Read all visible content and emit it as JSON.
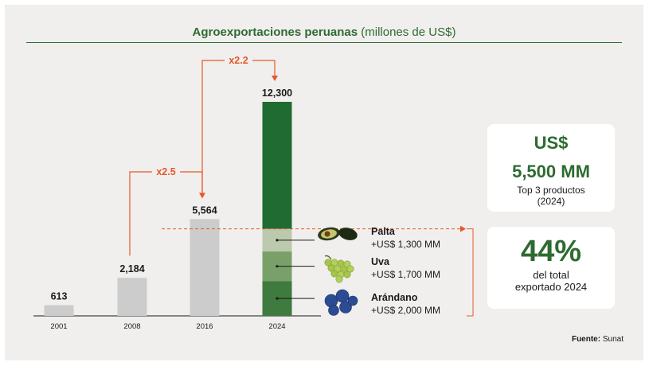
{
  "title": {
    "bold": "Agroexportaciones peruanas",
    "rest": "(millones de US$)"
  },
  "chart_data": {
    "type": "bar",
    "title": "Agroexportaciones peruanas (millones de US$)",
    "categories": [
      "2001",
      "2008",
      "2016",
      "2024"
    ],
    "values": [
      613,
      2184,
      5564,
      12300
    ],
    "value_labels": [
      "613",
      "2,184",
      "5,564",
      "12,300"
    ],
    "growth_annotations": [
      {
        "from": "2008",
        "to": "2016",
        "label": "x2.5"
      },
      {
        "from": "2016",
        "to": "2024",
        "label": "x2.2"
      }
    ],
    "breakdown_2024": [
      {
        "name": "Palta",
        "value": 1300,
        "label": "+US$ 1,300 MM"
      },
      {
        "name": "Uva",
        "value": 1700,
        "label": "+US$ 1,700 MM"
      },
      {
        "name": "Arándano",
        "value": 2000,
        "label": "+US$ 2,000 MM"
      }
    ],
    "colors": {
      "bar": "#cccccc",
      "bar_2024": "#1f6b32",
      "palta": "#bcc9ac",
      "uva": "#7aa06a",
      "arandano": "#3f7a3e",
      "accent": "#e8572a"
    }
  },
  "cards": {
    "top3": {
      "value_line1": "US$",
      "value_line2": "5,500 MM",
      "desc_line1": "Top 3 productos",
      "desc_line2": "(2024)"
    },
    "share": {
      "value": "44%",
      "desc_line1": "del total",
      "desc_line2": "exportado 2024"
    }
  },
  "source": {
    "label": "Fuente:",
    "value": "Sunat"
  }
}
